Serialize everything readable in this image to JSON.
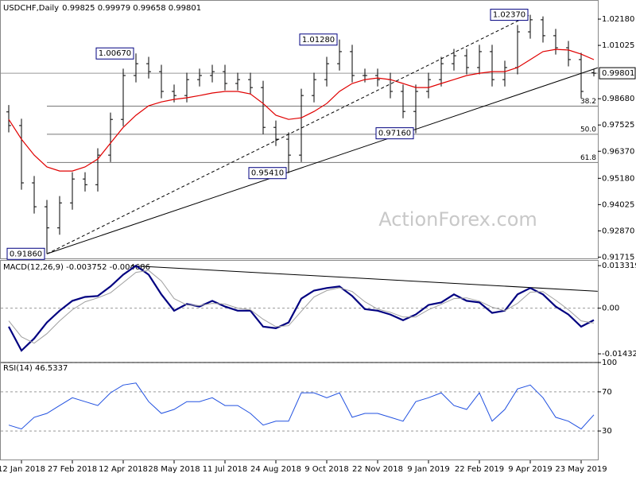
{
  "chart_data": [
    {
      "type": "ohlc",
      "title": "USDCHF,Daily",
      "quote": "0.99825 0.99979 0.99658 0.99801",
      "categories": [
        null,
        "12 Jan 2018",
        null,
        null,
        null,
        "27 Feb 2018",
        null,
        null,
        null,
        "12 Apr 2018",
        null,
        null,
        null,
        "28 May 2018",
        null,
        null,
        null,
        "11 Jul 2018",
        null,
        null,
        null,
        "24 Aug 2018",
        null,
        null,
        null,
        "9 Oct 2018",
        null,
        null,
        null,
        "22 Nov 2018",
        null,
        null,
        null,
        "9 Jan 2019",
        null,
        null,
        null,
        "22 Feb 2019",
        null,
        null,
        null,
        "9 Apr 2019",
        null,
        null,
        null,
        "23 May 2019",
        null
      ],
      "open": [
        0.981,
        0.975,
        0.9498,
        0.9393,
        0.93,
        0.941,
        0.9515,
        0.949,
        0.962,
        0.9777,
        0.997,
        1.0022,
        0.9987,
        0.99,
        0.9882,
        0.9952,
        0.997,
        0.9987,
        0.9935,
        0.9952,
        0.9917,
        0.9742,
        0.969,
        0.962,
        0.9882,
        0.9952,
        1.0022,
        1.0075,
        0.997,
        0.997,
        0.9952,
        0.99,
        0.9812,
        0.99,
        0.9952,
        1.0022,
        1.0057,
        1.0005,
        1.0075,
        0.9952,
        1.0005,
        1.0162,
        1.0215,
        1.0145,
        1.0092,
        1.004,
        0.99825
      ],
      "high": [
        0.984,
        0.978,
        0.9528,
        0.9423,
        0.944,
        0.9545,
        0.9545,
        0.965,
        0.9807,
        1.0,
        1.0067,
        1.0052,
        1.0017,
        0.993,
        0.9982,
        1.0,
        1.0017,
        1.0017,
        0.9982,
        0.9982,
        0.9947,
        0.9772,
        0.972,
        0.9912,
        0.9982,
        1.0052,
        1.0128,
        1.0105,
        1.0,
        1.0,
        0.9982,
        0.993,
        0.993,
        0.9982,
        1.0052,
        1.0087,
        1.0087,
        1.0105,
        1.0105,
        1.0035,
        1.0192,
        1.0237,
        1.023,
        1.0175,
        1.0122,
        1.007,
        0.99979
      ],
      "low": [
        0.972,
        0.9468,
        0.9363,
        0.9186,
        0.927,
        0.938,
        0.946,
        0.946,
        0.959,
        0.9747,
        0.994,
        0.9957,
        0.987,
        0.9852,
        0.9852,
        0.9922,
        0.994,
        0.9905,
        0.9905,
        0.9887,
        0.9712,
        0.966,
        0.9541,
        0.959,
        0.9852,
        0.9922,
        0.9992,
        0.994,
        0.994,
        0.9922,
        0.987,
        0.9782,
        0.9716,
        0.987,
        0.9922,
        0.9992,
        0.9975,
        0.9975,
        0.9922,
        0.9922,
        0.9975,
        1.0132,
        1.0115,
        1.0062,
        1.001,
        0.987,
        0.99658
      ],
      "close": [
        0.975,
        0.9498,
        0.9393,
        0.93,
        0.941,
        0.9515,
        0.949,
        0.962,
        0.9777,
        0.997,
        1.0022,
        0.9987,
        0.99,
        0.9882,
        0.9952,
        0.997,
        0.9987,
        0.9935,
        0.9952,
        0.9917,
        0.9742,
        0.969,
        0.962,
        0.9882,
        0.9952,
        1.0022,
        1.0075,
        0.997,
        0.997,
        0.9952,
        0.99,
        0.9812,
        0.99,
        0.9952,
        1.0022,
        1.0057,
        1.0005,
        1.0075,
        0.9952,
        1.0005,
        1.0162,
        1.0215,
        1.0145,
        1.0092,
        1.004,
        0.99,
        0.99801
      ],
      "color": "#000000",
      "moving_average": {
        "color": "#e00000",
        "values": [
          0.9777,
          0.969,
          0.962,
          0.9568,
          0.955,
          0.955,
          0.9568,
          0.9603,
          0.9673,
          0.9742,
          0.9795,
          0.9837,
          0.9854,
          0.9865,
          0.9872,
          0.9882,
          0.9893,
          0.99,
          0.99,
          0.9889,
          0.9847,
          0.9795,
          0.9777,
          0.9784,
          0.9812,
          0.9847,
          0.99,
          0.9935,
          0.9952,
          0.9959,
          0.9952,
          0.9935,
          0.9917,
          0.9917,
          0.9935,
          0.9952,
          0.997,
          0.998,
          0.9987,
          0.9987,
          1.0005,
          1.004,
          1.0075,
          1.0085,
          1.0082,
          1.0064,
          1.004
        ]
      },
      "last_price": {
        "value": 0.99801,
        "label": "0.99801"
      },
      "ylim": [
        0.9166,
        1.0302
      ],
      "yticks": [
        {
          "value": 1.0218,
          "label": "1.02180"
        },
        {
          "value": 1.01025,
          "label": "1.01025"
        },
        {
          "value": 0.9868,
          "label": "0.98680"
        },
        {
          "value": 0.97525,
          "label": "0.97525"
        },
        {
          "value": 0.9637,
          "label": "0.96370"
        },
        {
          "value": 0.9518,
          "label": "0.95180"
        },
        {
          "value": 0.94025,
          "label": "0.94025"
        },
        {
          "value": 0.9287,
          "label": "0.92870"
        },
        {
          "value": 0.91715,
          "label": "0.91715"
        }
      ],
      "fib_levels": [
        {
          "label": "38.2",
          "value": 0.98355,
          "x": 3
        },
        {
          "label": "50.0",
          "value": 0.97115,
          "x": 3
        },
        {
          "label": "61.8",
          "value": 0.95875,
          "x": 3
        }
      ],
      "annotations": [
        {
          "text": "1.00670",
          "value": 1.0067,
          "x": 10
        },
        {
          "text": "1.01280",
          "value": 1.0128,
          "x": 26
        },
        {
          "text": "1.02370",
          "value": 1.0237,
          "x": 41
        },
        {
          "text": "0.97160",
          "value": 0.9716,
          "x": 32
        },
        {
          "text": "0.95410",
          "value": 0.9541,
          "x": 22
        },
        {
          "text": "0.91860",
          "value": 0.9186,
          "x": 3
        }
      ],
      "trendlines": [
        {
          "style": "solid",
          "x": [
            3,
            46.3
          ],
          "values": [
            0.9186,
            1.0004
          ]
        },
        {
          "style": "dashed",
          "x": [
            3,
            41
          ],
          "values": [
            0.9186,
            1.0237
          ]
        }
      ],
      "watermark": "ActionForex.com"
    },
    {
      "type": "line",
      "title": "MACD(12,26,9) -0.003752 -0.004686",
      "series": [
        {
          "color": "#000080",
          "width": 2.2,
          "values": [
            -0.0058,
            -0.0133,
            -0.0095,
            -0.0045,
            -0.0008,
            0.0023,
            0.0035,
            0.0038,
            0.0068,
            0.0105,
            0.0133,
            0.0105,
            0.0043,
            -0.0008,
            0.0013,
            0.0005,
            0.0023,
            0.0005,
            -0.0008,
            -0.0008,
            -0.0058,
            -0.0063,
            -0.0045,
            0.003,
            0.0055,
            0.0063,
            0.0068,
            0.0038,
            -0.0003,
            -0.0008,
            -0.002,
            -0.0038,
            -0.002,
            0.001,
            0.0018,
            0.0043,
            0.0023,
            0.0018,
            -0.0015,
            -0.0008,
            0.0043,
            0.0063,
            0.0043,
            0.0005,
            -0.002,
            -0.0058,
            -0.003752
          ]
        },
        {
          "color": "#a0a0a0",
          "width": 1,
          "values": [
            -0.004,
            -0.009,
            -0.011,
            -0.008,
            -0.004,
            -0.0005,
            0.002,
            0.0032,
            0.0048,
            0.008,
            0.0112,
            0.0118,
            0.0085,
            0.003,
            0.001,
            0.0008,
            0.0015,
            0.0013,
            0.0,
            -0.0005,
            -0.0035,
            -0.0058,
            -0.0055,
            -0.001,
            0.0035,
            0.0055,
            0.0064,
            0.0052,
            0.002,
            -0.0003,
            -0.0013,
            -0.0028,
            -0.0028,
            -0.0005,
            0.0012,
            0.003,
            0.0032,
            0.0022,
            0.0003,
            -0.0008,
            0.0015,
            0.005,
            0.0052,
            0.0025,
            -0.0005,
            -0.004,
            -0.004686
          ]
        }
      ],
      "ylim": [
        -0.0168,
        0.0151
      ],
      "yticks": [
        0.013319,
        {
          "value": 0,
          "label": "0.00"
        },
        -0.014323
      ],
      "zero_line": true,
      "trendlines": [
        {
          "style": "solid",
          "x": [
            9.6,
            46.3
          ],
          "values": [
            0.0133,
            0.0053
          ]
        }
      ]
    },
    {
      "type": "line",
      "title": "RSI(14) 46.5337",
      "series": [
        {
          "color": "#2050e0",
          "width": 1,
          "values": [
            36,
            32,
            44,
            48,
            56,
            64,
            60,
            56,
            69,
            77,
            79,
            60,
            48,
            52,
            60,
            60,
            64,
            56,
            56,
            48,
            36,
            40,
            40,
            69,
            69,
            64,
            69,
            44,
            48,
            48,
            44,
            40,
            60,
            64,
            69,
            56,
            52,
            69,
            40,
            52,
            73,
            77,
            64,
            44,
            40,
            32,
            46.5337
          ]
        }
      ],
      "ylim": [
        0,
        100
      ],
      "yticks": [
        30,
        70,
        100
      ],
      "grid": "dashed"
    }
  ]
}
